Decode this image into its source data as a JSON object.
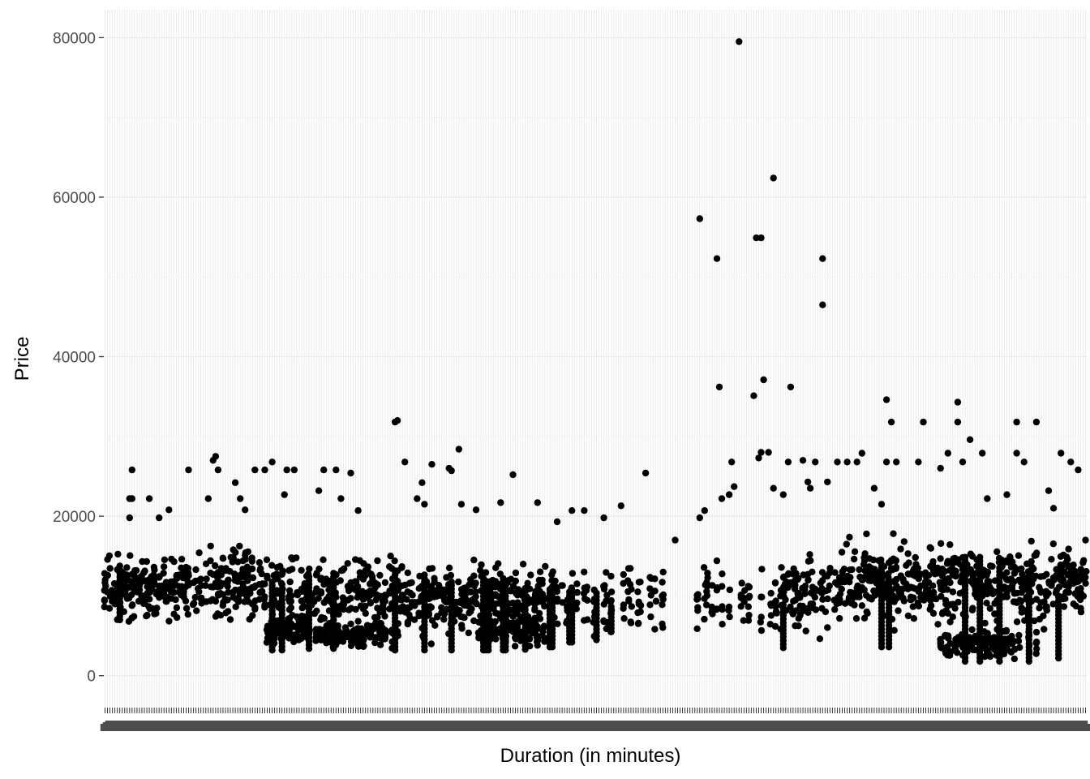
{
  "chart_data": {
    "type": "scatter",
    "title": "",
    "xlabel": "Duration (in minutes)",
    "ylabel": "Price",
    "ylim": [
      -4000,
      83500
    ],
    "y_ticks": [
      0,
      20000,
      40000,
      60000,
      80000
    ],
    "y_tick_labels": [
      "0",
      "20000",
      "40000",
      "60000",
      "80000"
    ],
    "x_axis": "categorical",
    "x_category_count": 400,
    "x_tick_labels_legible": false,
    "grid": true,
    "point_color": "#000000",
    "panel_background": "#ffffff",
    "grid_color": "#ebebeb",
    "clusters": [
      {
        "x_from": 0,
        "x_to": 6,
        "y_min": 4500,
        "y_max": 16500,
        "density": 1.0
      },
      {
        "x_from": 6,
        "x_to": 36,
        "y_min": 5000,
        "y_max": 17000,
        "density": 0.9
      },
      {
        "x_from": 36,
        "x_to": 66,
        "y_min": 5500,
        "y_max": 17500,
        "density": 0.9
      },
      {
        "x_from": 66,
        "x_to": 84,
        "y_min": 5000,
        "y_max": 16500,
        "density": 0.8
      },
      {
        "x_from": 66,
        "x_to": 84,
        "y_min": 3200,
        "y_max": 8000,
        "density": 0.8
      },
      {
        "x_from": 84,
        "x_to": 120,
        "y_min": 4500,
        "y_max": 16500,
        "density": 0.9
      },
      {
        "x_from": 84,
        "x_to": 120,
        "y_min": 3200,
        "y_max": 7000,
        "density": 0.6
      },
      {
        "x_from": 120,
        "x_to": 180,
        "y_min": 3500,
        "y_max": 15500,
        "density": 0.9
      },
      {
        "x_from": 150,
        "x_to": 180,
        "y_min": 3200,
        "y_max": 8000,
        "density": 0.7
      },
      {
        "x_from": 180,
        "x_to": 230,
        "y_min": 4000,
        "y_max": 15000,
        "density": 0.45
      },
      {
        "x_from": 230,
        "x_to": 275,
        "y_min": 3600,
        "y_max": 15000,
        "density": 0.35
      },
      {
        "x_from": 275,
        "x_to": 300,
        "y_min": 4000,
        "y_max": 16500,
        "density": 0.9
      },
      {
        "x_from": 300,
        "x_to": 330,
        "y_min": 4000,
        "y_max": 18500,
        "density": 1.0
      },
      {
        "x_from": 330,
        "x_to": 360,
        "y_min": 4500,
        "y_max": 18000,
        "density": 1.0
      },
      {
        "x_from": 360,
        "x_to": 400,
        "y_min": 5000,
        "y_max": 18000,
        "density": 1.0
      },
      {
        "x_from": 340,
        "x_to": 380,
        "y_min": 1800,
        "y_max": 6000,
        "density": 0.6
      }
    ],
    "columns": [
      {
        "x": 6,
        "y_min": 7000,
        "y_max": 14000
      },
      {
        "x": 68,
        "y_min": 3200,
        "y_max": 12000
      },
      {
        "x": 72,
        "y_min": 3200,
        "y_max": 11000
      },
      {
        "x": 83,
        "y_min": 3400,
        "y_max": 12500
      },
      {
        "x": 93,
        "y_min": 3400,
        "y_max": 13000
      },
      {
        "x": 118,
        "y_min": 3200,
        "y_max": 13500
      },
      {
        "x": 130,
        "y_min": 3200,
        "y_max": 13000
      },
      {
        "x": 141,
        "y_min": 3200,
        "y_max": 12000
      },
      {
        "x": 154,
        "y_min": 3200,
        "y_max": 12500
      },
      {
        "x": 155,
        "y_min": 3200,
        "y_max": 12000
      },
      {
        "x": 156,
        "y_min": 3200,
        "y_max": 12000
      },
      {
        "x": 162,
        "y_min": 3200,
        "y_max": 12500
      },
      {
        "x": 163,
        "y_min": 3200,
        "y_max": 12000
      },
      {
        "x": 171,
        "y_min": 3300,
        "y_max": 11000
      },
      {
        "x": 181,
        "y_min": 3600,
        "y_max": 11000
      },
      {
        "x": 182,
        "y_min": 3600,
        "y_max": 11000
      },
      {
        "x": 189,
        "y_min": 4200,
        "y_max": 10500
      },
      {
        "x": 190,
        "y_min": 4200,
        "y_max": 10500
      },
      {
        "x": 200,
        "y_min": 4500,
        "y_max": 10500
      },
      {
        "x": 206,
        "y_min": 5500,
        "y_max": 9000
      },
      {
        "x": 276,
        "y_min": 3500,
        "y_max": 9000
      },
      {
        "x": 316,
        "y_min": 3600,
        "y_max": 14000
      },
      {
        "x": 319,
        "y_min": 3600,
        "y_max": 12000
      },
      {
        "x": 350,
        "y_min": 1800,
        "y_max": 15000
      },
      {
        "x": 356,
        "y_min": 1800,
        "y_max": 15000
      },
      {
        "x": 364,
        "y_min": 1800,
        "y_max": 13500
      },
      {
        "x": 376,
        "y_min": 1800,
        "y_max": 13000
      },
      {
        "x": 388,
        "y_min": 2200,
        "y_max": 10000
      }
    ],
    "points": [
      {
        "x": 10,
        "y": 19800
      },
      {
        "x": 11,
        "y": 25800
      },
      {
        "x": 10,
        "y": 22200
      },
      {
        "x": 11,
        "y": 22200
      },
      {
        "x": 18,
        "y": 22200
      },
      {
        "x": 22,
        "y": 19800
      },
      {
        "x": 26,
        "y": 20800
      },
      {
        "x": 34,
        "y": 25800
      },
      {
        "x": 42,
        "y": 22200
      },
      {
        "x": 44,
        "y": 27000
      },
      {
        "x": 45,
        "y": 27500
      },
      {
        "x": 46,
        "y": 25800
      },
      {
        "x": 53,
        "y": 24200
      },
      {
        "x": 55,
        "y": 22200
      },
      {
        "x": 57,
        "y": 20800
      },
      {
        "x": 61,
        "y": 25800
      },
      {
        "x": 65,
        "y": 25800
      },
      {
        "x": 68,
        "y": 26800
      },
      {
        "x": 73,
        "y": 22700
      },
      {
        "x": 74,
        "y": 25800
      },
      {
        "x": 77,
        "y": 25800
      },
      {
        "x": 87,
        "y": 23200
      },
      {
        "x": 89,
        "y": 25800
      },
      {
        "x": 94,
        "y": 25800
      },
      {
        "x": 96,
        "y": 22200
      },
      {
        "x": 100,
        "y": 25400
      },
      {
        "x": 103,
        "y": 20700
      },
      {
        "x": 118,
        "y": 31800
      },
      {
        "x": 119,
        "y": 32000
      },
      {
        "x": 122,
        "y": 26800
      },
      {
        "x": 127,
        "y": 22200
      },
      {
        "x": 129,
        "y": 24200
      },
      {
        "x": 130,
        "y": 21500
      },
      {
        "x": 133,
        "y": 26500
      },
      {
        "x": 140,
        "y": 26000
      },
      {
        "x": 141,
        "y": 25700
      },
      {
        "x": 144,
        "y": 28400
      },
      {
        "x": 145,
        "y": 21500
      },
      {
        "x": 151,
        "y": 20800
      },
      {
        "x": 161,
        "y": 21700
      },
      {
        "x": 166,
        "y": 25200
      },
      {
        "x": 176,
        "y": 21700
      },
      {
        "x": 184,
        "y": 19300
      },
      {
        "x": 190,
        "y": 20700
      },
      {
        "x": 195,
        "y": 20700
      },
      {
        "x": 203,
        "y": 19800
      },
      {
        "x": 210,
        "y": 21300
      },
      {
        "x": 220,
        "y": 25400
      },
      {
        "x": 232,
        "y": 17000
      },
      {
        "x": 242,
        "y": 19800
      },
      {
        "x": 244,
        "y": 20700
      },
      {
        "x": 242,
        "y": 57300
      },
      {
        "x": 249,
        "y": 52300
      },
      {
        "x": 250,
        "y": 36200
      },
      {
        "x": 255,
        "y": 26800
      },
      {
        "x": 256,
        "y": 23700
      },
      {
        "x": 251,
        "y": 22200
      },
      {
        "x": 254,
        "y": 22700
      },
      {
        "x": 258,
        "y": 79500
      },
      {
        "x": 264,
        "y": 35100
      },
      {
        "x": 265,
        "y": 54900
      },
      {
        "x": 267,
        "y": 54900
      },
      {
        "x": 268,
        "y": 37100
      },
      {
        "x": 266,
        "y": 27300
      },
      {
        "x": 267,
        "y": 28000
      },
      {
        "x": 270,
        "y": 28000
      },
      {
        "x": 272,
        "y": 23500
      },
      {
        "x": 272,
        "y": 62400
      },
      {
        "x": 276,
        "y": 22700
      },
      {
        "x": 278,
        "y": 26800
      },
      {
        "x": 279,
        "y": 36200
      },
      {
        "x": 284,
        "y": 27000
      },
      {
        "x": 286,
        "y": 24300
      },
      {
        "x": 287,
        "y": 23500
      },
      {
        "x": 289,
        "y": 26800
      },
      {
        "x": 292,
        "y": 52300
      },
      {
        "x": 292,
        "y": 46500
      },
      {
        "x": 294,
        "y": 24300
      },
      {
        "x": 298,
        "y": 26800
      },
      {
        "x": 302,
        "y": 26800
      },
      {
        "x": 306,
        "y": 26800
      },
      {
        "x": 308,
        "y": 27900
      },
      {
        "x": 313,
        "y": 23500
      },
      {
        "x": 316,
        "y": 21500
      },
      {
        "x": 318,
        "y": 26800
      },
      {
        "x": 318,
        "y": 34600
      },
      {
        "x": 320,
        "y": 31800
      },
      {
        "x": 322,
        "y": 26800
      },
      {
        "x": 331,
        "y": 26800
      },
      {
        "x": 333,
        "y": 31800
      },
      {
        "x": 340,
        "y": 26000
      },
      {
        "x": 343,
        "y": 27900
      },
      {
        "x": 347,
        "y": 31800
      },
      {
        "x": 347,
        "y": 34300
      },
      {
        "x": 349,
        "y": 26800
      },
      {
        "x": 352,
        "y": 29600
      },
      {
        "x": 357,
        "y": 27900
      },
      {
        "x": 359,
        "y": 22200
      },
      {
        "x": 367,
        "y": 22700
      },
      {
        "x": 371,
        "y": 31800
      },
      {
        "x": 371,
        "y": 27900
      },
      {
        "x": 374,
        "y": 26800
      },
      {
        "x": 379,
        "y": 31800
      },
      {
        "x": 384,
        "y": 23200
      },
      {
        "x": 386,
        "y": 21000
      },
      {
        "x": 389,
        "y": 27900
      },
      {
        "x": 393,
        "y": 26800
      },
      {
        "x": 396,
        "y": 25800
      },
      {
        "x": 399,
        "y": 17000
      }
    ]
  }
}
